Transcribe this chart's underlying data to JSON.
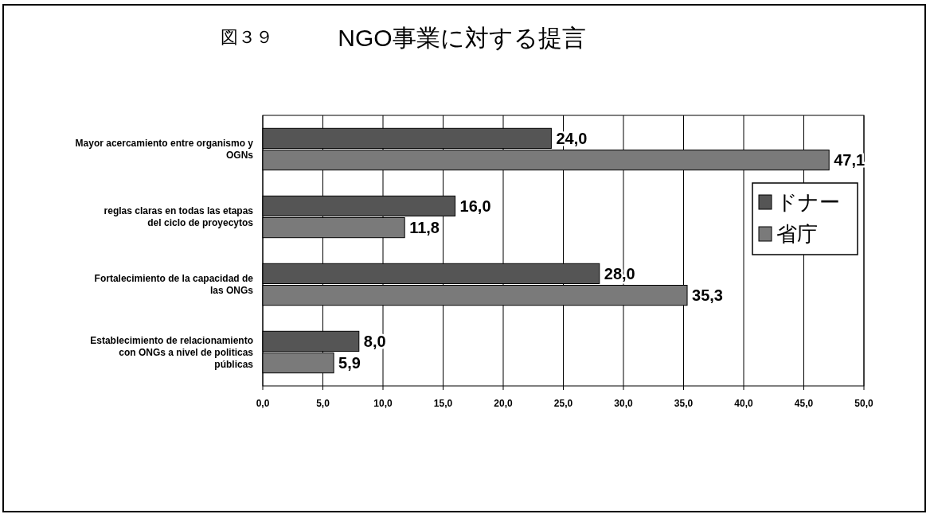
{
  "chart_data": {
    "type": "bar",
    "orientation": "horizontal",
    "title": "NGO事業に対する提言",
    "annotations": [
      "図３９"
    ],
    "categories": [
      "Mayor acercamiento entre organismo y OGNs",
      "reglas claras en todas las etapas del ciclo de proyecytos",
      "Fortalecimiento de la capacidad de las ONGs",
      "Establecimiento de relacionamiento con ONGs a nivel de politicas públicas"
    ],
    "series": [
      {
        "name": "ドナー",
        "color": "#555555",
        "values": [
          24.0,
          16.0,
          28.0,
          8.0
        ],
        "value_labels": [
          "24,0",
          "16,0",
          "28,0",
          "8,0"
        ]
      },
      {
        "name": "省庁",
        "color": "#7a7a7a",
        "values": [
          47.1,
          11.8,
          35.3,
          5.9
        ],
        "value_labels": [
          "47,1",
          "11,8",
          "35,3",
          "5,9"
        ]
      }
    ],
    "xlim": [
      0,
      50
    ],
    "xticks": [
      {
        "value": 0,
        "label": "0,0"
      },
      {
        "value": 5,
        "label": "5,0"
      },
      {
        "value": 10,
        "label": "10,0"
      },
      {
        "value": 15,
        "label": "15,0"
      },
      {
        "value": 20,
        "label": "20,0"
      },
      {
        "value": 25,
        "label": "25,0"
      },
      {
        "value": 30,
        "label": "30,0"
      },
      {
        "value": 35,
        "label": "35,0"
      },
      {
        "value": 40,
        "label": "40,0"
      },
      {
        "value": 45,
        "label": "45,0"
      },
      {
        "value": 50,
        "label": "50,0"
      }
    ],
    "grid": "x",
    "legend": "right"
  }
}
